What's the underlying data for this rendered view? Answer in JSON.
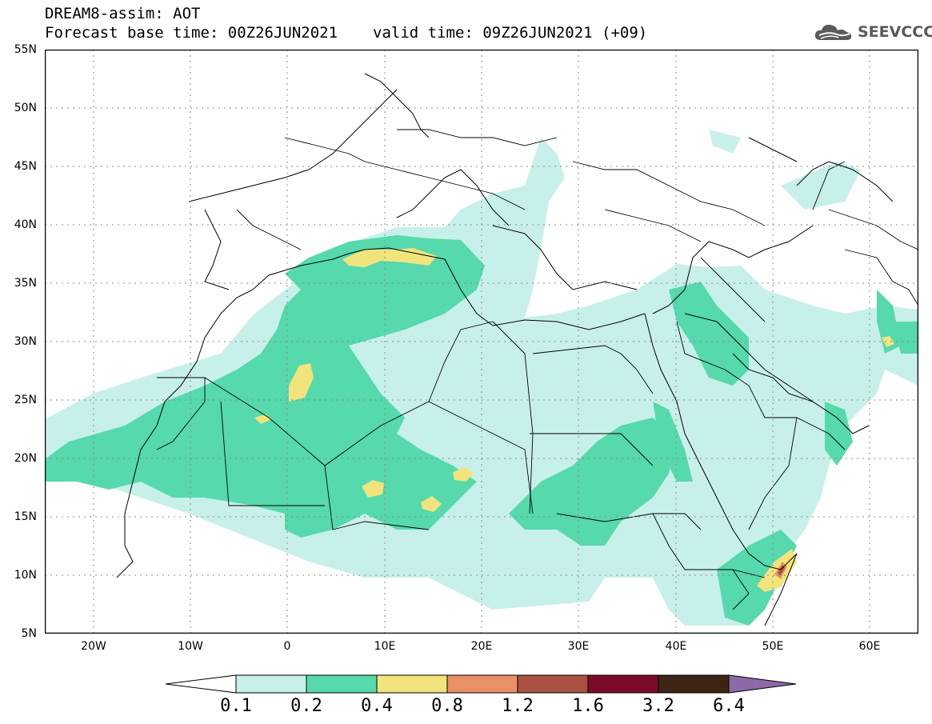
{
  "header": {
    "line1": "DREAM8-assim: AOT",
    "base_time": "Forecast base time: 00Z26JUN2021",
    "valid_time": "valid time: 09Z26JUN2021 (+09)"
  },
  "logo": {
    "text": "SEEVCCC",
    "icon": "cloud-logo-icon"
  },
  "map": {
    "lon_range": [
      -25,
      65
    ],
    "lat_range": [
      5,
      55
    ],
    "lat_ticks": [
      "55N",
      "50N",
      "45N",
      "40N",
      "35N",
      "30N",
      "25N",
      "20N",
      "15N",
      "10N",
      "5N"
    ],
    "lon_ticks": [
      "20W",
      "10W",
      "0",
      "10E",
      "20E",
      "30E",
      "40E",
      "50E",
      "60E"
    ],
    "grid": "dotted"
  },
  "colorbar": {
    "labels": [
      "0.1",
      "0.2",
      "0.4",
      "0.8",
      "1.2",
      "1.6",
      "3.2",
      "6.4"
    ],
    "colors": [
      "#ffffff",
      "#c8f0ea",
      "#56d9ac",
      "#f2e47c",
      "#e99067",
      "#aa5141",
      "#7c0a2b",
      "#3e2513",
      "#8c6aa8"
    ]
  }
}
